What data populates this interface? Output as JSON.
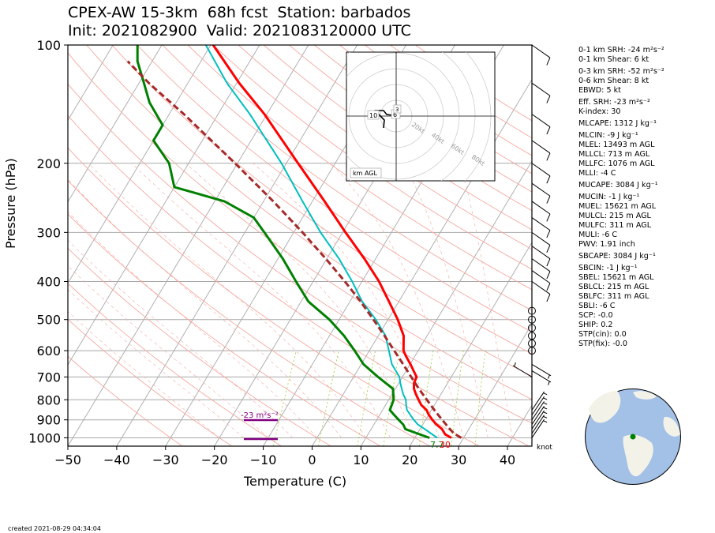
{
  "title_line1": "CPEX-AW 15-3km  68h fcst  Station: barbados",
  "title_line2": "Init: 2021082900  Valid: 2021083120000 UTC",
  "created": "created 2021-08-29 04:34:04",
  "colors": {
    "temperature": "#ff0000",
    "dewpoint": "#008000",
    "wetbulb": "#00bfbf",
    "parcel": "#a52a2a",
    "srh": "#800080",
    "moist_adiabat": "#9acd32",
    "dry_adiabat": "#f4a9a0",
    "isotherm": "#a8a8a8"
  },
  "indices": [
    "0-1 km SRH: -24 m²s⁻²",
    "0-1 km Shear: 6 kt",
    "0-3 km SRH: -52 m²s⁻²",
    "0-6 km Shear: 8 kt",
    "EBWD: 5 kt",
    "Eff. SRH: -23 m²s⁻²",
    "K-index: 30",
    "MLCAPE: 1312 J kg⁻¹",
    "MLCIN: -9 J kg⁻¹",
    "MLEL: 13493 m AGL",
    "MLLCL: 713 m AGL",
    "MLLFC: 1076 m AGL",
    "MLLI: -4 C",
    "MUCAPE: 3084 J kg⁻¹",
    "MUCIN: -1 J kg⁻¹",
    "MUEL: 15621 m AGL",
    "MULCL: 215 m AGL",
    "MULFC: 311 m AGL",
    "MULI: -6 C",
    "PWV: 1.91 inch",
    "SBCAPE: 3084 J kg⁻¹",
    "SBCIN: -1 J kg⁻¹",
    "SBEL: 15621 m AGL",
    "SBLCL: 215 m AGL",
    "SBLFC: 311 m AGL",
    "SBLI: -6 C",
    "SCP: -0.0",
    "SHIP: 0.2",
    "STP(cin): 0.0",
    "STP(fix): -0.0"
  ],
  "inset": {
    "label": "km AGL",
    "rings": [
      "20kt",
      "40kt",
      "60kt",
      "80kt"
    ],
    "height_labels": [
      "10",
      "6",
      "3"
    ]
  },
  "annotations": {
    "srh_label": "-23 m²s⁻²",
    "surface_dewpoint": "7.7",
    "surface_temp": "30",
    "knots_label": "knot"
  },
  "chart_data": {
    "type": "line",
    "title": "CPEX-AW 15-3km  68h fcst  Station: barbados",
    "xlabel": "Temperature (C)",
    "ylabel": "Pressure (hPa)",
    "xlim": [
      -50,
      45
    ],
    "ylim": [
      1050,
      100
    ],
    "y_scale": "log",
    "x_ticks": [
      -50,
      -40,
      -30,
      -20,
      -10,
      0,
      10,
      20,
      30,
      40
    ],
    "y_ticks": [
      1000,
      900,
      800,
      700,
      600,
      500,
      400,
      300,
      200,
      100
    ],
    "skew": true,
    "series": [
      {
        "name": "Temperature",
        "color": "#ff0000",
        "points": [
          [
            1000,
            27.5
          ],
          [
            980,
            25.8
          ],
          [
            950,
            24.5
          ],
          [
            925,
            22.8
          ],
          [
            900,
            21.4
          ],
          [
            875,
            20.1
          ],
          [
            850,
            19.0
          ],
          [
            825,
            17.3
          ],
          [
            800,
            16.1
          ],
          [
            775,
            14.9
          ],
          [
            750,
            13.8
          ],
          [
            725,
            13.1
          ],
          [
            700,
            12.9
          ],
          [
            680,
            11.8
          ],
          [
            650,
            10.1
          ],
          [
            620,
            8.2
          ],
          [
            600,
            7.0
          ],
          [
            550,
            5.2
          ],
          [
            500,
            2.0
          ],
          [
            450,
            -2.0
          ],
          [
            400,
            -6.5
          ],
          [
            350,
            -12.3
          ],
          [
            300,
            -19.4
          ],
          [
            250,
            -27.5
          ],
          [
            200,
            -37.6
          ],
          [
            150,
            -50.5
          ],
          [
            125,
            -59.5
          ],
          [
            100,
            -69.5
          ]
        ]
      },
      {
        "name": "Dewpoint",
        "color": "#008000",
        "points": [
          [
            1000,
            23.0
          ],
          [
            975,
            20.0
          ],
          [
            950,
            17.0
          ],
          [
            925,
            16.0
          ],
          [
            900,
            14.5
          ],
          [
            875,
            13.0
          ],
          [
            850,
            11.5
          ],
          [
            800,
            11.0
          ],
          [
            750,
            9.5
          ],
          [
            700,
            5.0
          ],
          [
            650,
            0.5
          ],
          [
            600,
            -3.0
          ],
          [
            550,
            -7.0
          ],
          [
            500,
            -12.0
          ],
          [
            450,
            -18.5
          ],
          [
            400,
            -23.5
          ],
          [
            350,
            -29.0
          ],
          [
            300,
            -36.0
          ],
          [
            275,
            -40.0
          ],
          [
            250,
            -48.0
          ],
          [
            230,
            -60.0
          ],
          [
            200,
            -64.0
          ],
          [
            175,
            -70.0
          ],
          [
            160,
            -70.0
          ],
          [
            140,
            -75.5
          ],
          [
            125,
            -79.0
          ],
          [
            110,
            -83.0
          ],
          [
            100,
            -85.0
          ]
        ]
      },
      {
        "name": "Wet-bulb",
        "color": "#00bfbf",
        "points": [
          [
            1000,
            24.6
          ],
          [
            975,
            22.8
          ],
          [
            950,
            21.0
          ],
          [
            925,
            19.0
          ],
          [
            900,
            17.6
          ],
          [
            875,
            16.3
          ],
          [
            850,
            15.0
          ],
          [
            825,
            14.2
          ],
          [
            800,
            13.5
          ],
          [
            775,
            12.3
          ],
          [
            750,
            11.3
          ],
          [
            725,
            10.3
          ],
          [
            700,
            9.4
          ],
          [
            650,
            6.3
          ],
          [
            600,
            4.0
          ],
          [
            550,
            1.5
          ],
          [
            500,
            -2.5
          ],
          [
            450,
            -7.5
          ],
          [
            400,
            -12.0
          ],
          [
            350,
            -17.5
          ],
          [
            300,
            -24.5
          ],
          [
            250,
            -32.0
          ],
          [
            200,
            -41.0
          ],
          [
            150,
            -53.5
          ],
          [
            125,
            -62.0
          ],
          [
            100,
            -71.0
          ]
        ]
      },
      {
        "name": "Parcel",
        "color": "#a52a2a",
        "points": [
          [
            1000,
            29.5
          ],
          [
            975,
            27.5
          ],
          [
            950,
            26.1
          ],
          [
            900,
            23.4
          ],
          [
            850,
            20.6
          ],
          [
            800,
            17.8
          ],
          [
            750,
            14.8
          ],
          [
            700,
            11.8
          ],
          [
            650,
            8.6
          ],
          [
            600,
            5.1
          ],
          [
            550,
            1.3
          ],
          [
            500,
            -3.0
          ],
          [
            450,
            -7.8
          ],
          [
            400,
            -13.5
          ],
          [
            350,
            -20.2
          ],
          [
            300,
            -28.2
          ],
          [
            250,
            -38.0
          ],
          [
            200,
            -50.5
          ],
          [
            150,
            -67.0
          ],
          [
            125,
            -78.0
          ],
          [
            110,
            -85.0
          ]
        ]
      }
    ],
    "wind_barbs": [
      {
        "p": 1000,
        "u": -2,
        "v": -3
      },
      {
        "p": 975,
        "u": -2,
        "v": -3
      },
      {
        "p": 950,
        "u": -2,
        "v": -3
      },
      {
        "p": 925,
        "u": -2,
        "v": -3
      },
      {
        "p": 900,
        "u": -2,
        "v": -3
      },
      {
        "p": 875,
        "u": -2,
        "v": -3
      },
      {
        "p": 850,
        "u": -2,
        "v": -3
      },
      {
        "p": 700,
        "u": 5,
        "v": -3
      },
      {
        "p": 675,
        "u": -5,
        "v": 3
      },
      {
        "p": 650,
        "u": -5,
        "v": 3
      },
      {
        "p": 600,
        "u": 0,
        "v": 0
      },
      {
        "p": 575,
        "u": 0,
        "v": 0
      },
      {
        "p": 550,
        "u": 0,
        "v": 0
      },
      {
        "p": 525,
        "u": 0,
        "v": 0
      },
      {
        "p": 500,
        "u": 0,
        "v": 0
      },
      {
        "p": 475,
        "u": 0,
        "v": 0
      },
      {
        "p": 400,
        "u": -10,
        "v": 7
      },
      {
        "p": 375,
        "u": -10,
        "v": 7
      },
      {
        "p": 350,
        "u": -10,
        "v": 7
      },
      {
        "p": 325,
        "u": -10,
        "v": 7
      },
      {
        "p": 300,
        "u": -10,
        "v": 7
      },
      {
        "p": 275,
        "u": -10,
        "v": 7
      },
      {
        "p": 250,
        "u": -10,
        "v": 7
      },
      {
        "p": 225,
        "u": -10,
        "v": 7
      },
      {
        "p": 200,
        "u": -10,
        "v": 7
      },
      {
        "p": 175,
        "u": -10,
        "v": 7
      },
      {
        "p": 150,
        "u": -10,
        "v": 7
      },
      {
        "p": 125,
        "u": -10,
        "v": 7
      },
      {
        "p": 100,
        "u": -10,
        "v": 7
      }
    ]
  }
}
